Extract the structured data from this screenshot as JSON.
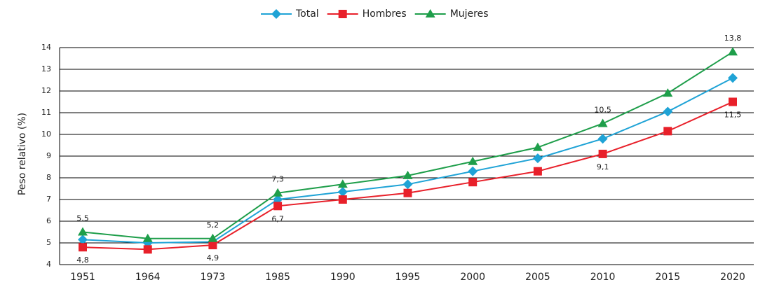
{
  "chart_data": {
    "type": "line",
    "y_label": "Peso relativo (%)",
    "categories": [
      "1951",
      "1964",
      "1973",
      "1985",
      "1990",
      "1995",
      "2000",
      "2005",
      "2010",
      "2015",
      "2020"
    ],
    "series": [
      {
        "name": "Total",
        "color": "#1fa3d6",
        "marker": "diamond",
        "values": [
          5.15,
          5.0,
          5.05,
          7.0,
          7.35,
          7.7,
          8.3,
          8.9,
          9.8,
          11.05,
          12.6
        ]
      },
      {
        "name": "Hombres",
        "color": "#e8202a",
        "marker": "square",
        "label_position": "below",
        "values": [
          4.8,
          4.7,
          4.9,
          6.7,
          7.0,
          7.3,
          7.8,
          8.3,
          9.1,
          10.15,
          11.5
        ],
        "value_labels": [
          "4,8",
          null,
          "4,9",
          "6,7",
          null,
          null,
          null,
          null,
          "9,1",
          null,
          "11,5"
        ]
      },
      {
        "name": "Mujeres",
        "color": "#1e9e4a",
        "marker": "triangle",
        "label_position": "above",
        "values": [
          5.5,
          5.2,
          5.2,
          7.3,
          7.7,
          8.1,
          8.75,
          9.4,
          10.5,
          11.9,
          13.8
        ],
        "value_labels": [
          "5,5",
          null,
          "5,2",
          "7,3",
          null,
          null,
          null,
          null,
          "10,5",
          null,
          "13,8"
        ]
      }
    ],
    "ylim": [
      4,
      14
    ],
    "yticks": [
      4,
      5,
      6,
      7,
      8,
      9,
      10,
      11,
      12,
      13,
      14
    ],
    "grid": true,
    "legend": "top"
  }
}
